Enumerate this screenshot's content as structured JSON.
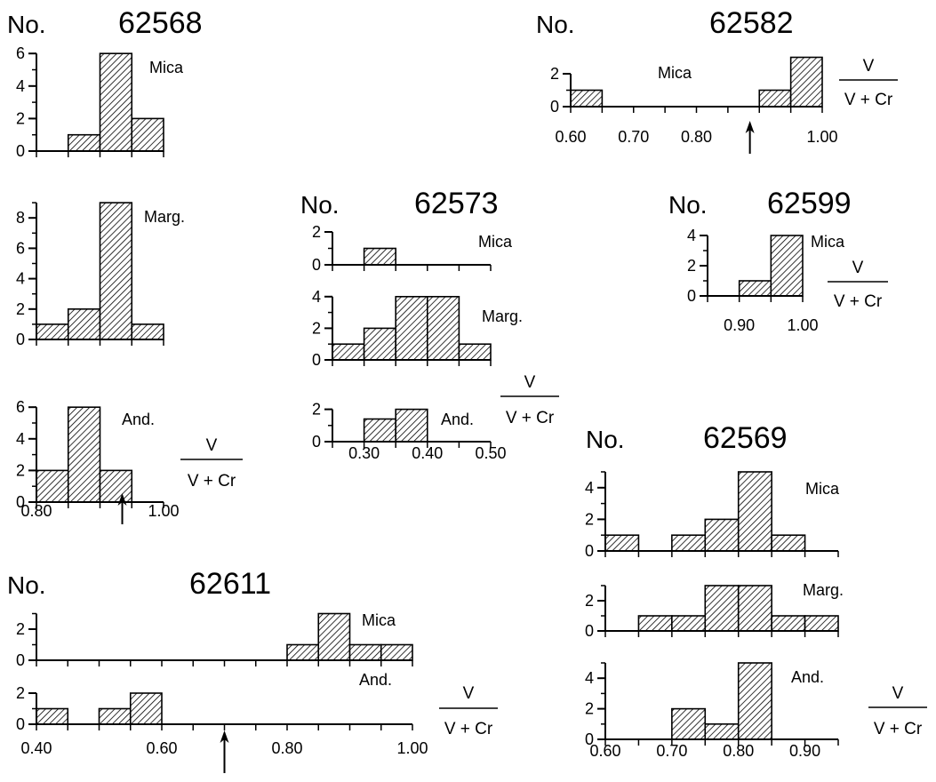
{
  "chart_data": [
    {
      "type": "bar",
      "sample": "62568",
      "no_label": "No.",
      "xlim": [
        0.8,
        1.0
      ],
      "x_ticks": [
        "0.80",
        "1.00"
      ],
      "arrow_x": 0.935,
      "axis_label": {
        "numerator": "V",
        "denominator": "V + Cr"
      },
      "series": [
        {
          "name": "Mica",
          "y_ticks": [
            "0",
            "2",
            "4",
            "6"
          ],
          "ylim": [
            0,
            6
          ],
          "bins": [
            [
              0.85,
              0.9,
              1
            ],
            [
              0.9,
              0.95,
              6
            ],
            [
              0.95,
              1.0,
              2
            ]
          ]
        },
        {
          "name": "Marg.",
          "y_ticks": [
            "0",
            "2",
            "4",
            "6",
            "8"
          ],
          "ylim": [
            0,
            9
          ],
          "bins": [
            [
              0.8,
              0.85,
              1
            ],
            [
              0.85,
              0.9,
              2
            ],
            [
              0.9,
              0.95,
              9
            ],
            [
              0.95,
              1.0,
              1
            ]
          ]
        },
        {
          "name": "And.",
          "y_ticks": [
            "0",
            "2",
            "4",
            "6"
          ],
          "ylim": [
            0,
            6
          ],
          "bins": [
            [
              0.8,
              0.85,
              2
            ],
            [
              0.85,
              0.9,
              6
            ],
            [
              0.9,
              0.95,
              2
            ]
          ]
        }
      ]
    },
    {
      "type": "bar",
      "sample": "62573",
      "no_label": "No.",
      "xlim": [
        0.25,
        0.5
      ],
      "x_ticks": [
        "0.30",
        "0.40",
        "0.50"
      ],
      "axis_label": {
        "numerator": "V",
        "denominator": "V + Cr"
      },
      "series": [
        {
          "name": "Mica",
          "y_ticks": [
            "0",
            "2"
          ],
          "ylim": [
            0,
            2
          ],
          "bins": [
            [
              0.3,
              0.35,
              1
            ]
          ]
        },
        {
          "name": "Marg.",
          "y_ticks": [
            "0",
            "2",
            "4"
          ],
          "ylim": [
            0,
            4
          ],
          "bins": [
            [
              0.25,
              0.3,
              1
            ],
            [
              0.3,
              0.35,
              2
            ],
            [
              0.35,
              0.4,
              4
            ],
            [
              0.4,
              0.45,
              4
            ],
            [
              0.45,
              0.5,
              1
            ]
          ]
        },
        {
          "name": "And.",
          "y_ticks": [
            "0",
            "2"
          ],
          "ylim": [
            0,
            2
          ],
          "bins": [
            [
              0.3,
              0.35,
              1.4
            ],
            [
              0.35,
              0.4,
              2
            ]
          ]
        }
      ]
    },
    {
      "type": "bar",
      "sample": "62582",
      "no_label": "No.",
      "xlim": [
        0.6,
        1.0
      ],
      "x_ticks": [
        "0.60",
        "0.70",
        "0.80",
        "1.00"
      ],
      "arrow_x": 0.885,
      "axis_label": {
        "numerator": "V",
        "denominator": "V + Cr"
      },
      "series": [
        {
          "name": "Mica",
          "y_ticks": [
            "0",
            "2"
          ],
          "ylim": [
            0,
            2
          ],
          "bins": [
            [
              0.6,
              0.65,
              1
            ],
            [
              0.9,
              0.95,
              1
            ],
            [
              0.95,
              1.0,
              3
            ]
          ]
        }
      ]
    },
    {
      "type": "bar",
      "sample": "62599",
      "no_label": "No.",
      "xlim": [
        0.85,
        1.0
      ],
      "x_ticks": [
        "0.90",
        "1.00"
      ],
      "axis_label": {
        "numerator": "V",
        "denominator": "V + Cr"
      },
      "series": [
        {
          "name": "Mica",
          "y_ticks": [
            "0",
            "2",
            "4"
          ],
          "ylim": [
            0,
            4
          ],
          "bins": [
            [
              0.9,
              0.95,
              1
            ],
            [
              0.95,
              1.0,
              4
            ]
          ]
        }
      ]
    },
    {
      "type": "bar",
      "sample": "62569",
      "no_label": "No.",
      "xlim": [
        0.6,
        0.95
      ],
      "x_ticks": [
        "0.60",
        "0.70",
        "0.80",
        "0.90"
      ],
      "axis_label": {
        "numerator": "V",
        "denominator": "V + Cr"
      },
      "series": [
        {
          "name": "Mica",
          "y_ticks": [
            "0",
            "2",
            "4"
          ],
          "ylim": [
            0,
            5
          ],
          "bins": [
            [
              0.6,
              0.65,
              1
            ],
            [
              0.7,
              0.75,
              1
            ],
            [
              0.75,
              0.8,
              2
            ],
            [
              0.8,
              0.85,
              5
            ],
            [
              0.85,
              0.9,
              1
            ]
          ]
        },
        {
          "name": "Marg.",
          "y_ticks": [
            "0",
            "2"
          ],
          "ylim": [
            0,
            3
          ],
          "bins": [
            [
              0.65,
              0.7,
              1
            ],
            [
              0.7,
              0.75,
              1
            ],
            [
              0.75,
              0.8,
              3
            ],
            [
              0.8,
              0.85,
              3
            ],
            [
              0.85,
              0.9,
              1
            ],
            [
              0.9,
              0.95,
              1
            ]
          ]
        },
        {
          "name": "And.",
          "y_ticks": [
            "0",
            "2",
            "4"
          ],
          "ylim": [
            0,
            5
          ],
          "bins": [
            [
              0.7,
              0.75,
              2
            ],
            [
              0.75,
              0.8,
              1
            ],
            [
              0.8,
              0.85,
              5
            ]
          ]
        }
      ]
    },
    {
      "type": "bar",
      "sample": "62611",
      "no_label": "No.",
      "xlim": [
        0.4,
        1.0
      ],
      "x_ticks": [
        "0.40",
        "0.60",
        "0.80",
        "1.00"
      ],
      "arrow_x": 0.7,
      "axis_label": {
        "numerator": "V",
        "denominator": "V + Cr"
      },
      "series": [
        {
          "name": "Mica",
          "y_ticks": [
            "0",
            "2"
          ],
          "ylim": [
            0,
            3
          ],
          "bins": [
            [
              0.8,
              0.85,
              1
            ],
            [
              0.85,
              0.9,
              3
            ],
            [
              0.9,
              0.95,
              1
            ],
            [
              0.95,
              1.0,
              1
            ]
          ]
        },
        {
          "name": "And.",
          "y_ticks": [
            "0",
            "2"
          ],
          "ylim": [
            0,
            2
          ],
          "bins": [
            [
              0.4,
              0.45,
              1
            ],
            [
              0.5,
              0.55,
              1
            ],
            [
              0.55,
              0.6,
              2
            ]
          ]
        }
      ]
    }
  ]
}
